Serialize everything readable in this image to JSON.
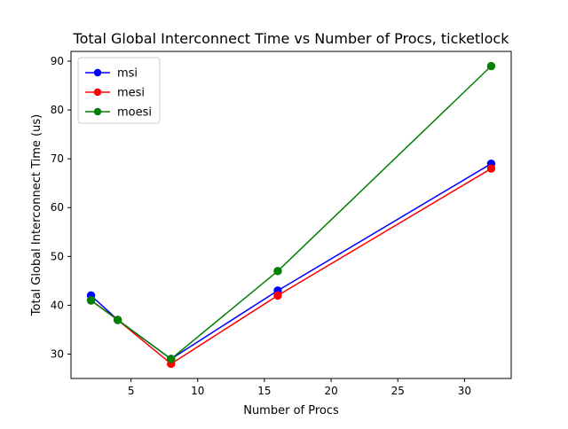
{
  "chart_data": {
    "type": "line",
    "title": "Total Global Interconnect Time vs Number of Procs, ticketlock",
    "xlabel": "Number of Procs",
    "ylabel": "Total Global Interconnect Time (us)",
    "x": [
      2,
      4,
      8,
      16,
      32
    ],
    "xlim": [
      0.5,
      33.5
    ],
    "ylim": [
      25,
      92
    ],
    "xticks": [
      5,
      10,
      15,
      20,
      25,
      30
    ],
    "yticks": [
      30,
      40,
      50,
      60,
      70,
      80,
      90
    ],
    "grid": false,
    "legend_position": "top-left",
    "series": [
      {
        "name": "msi",
        "color": "#0000ff",
        "values": [
          42,
          37,
          29,
          43,
          69
        ]
      },
      {
        "name": "mesi",
        "color": "#ff0000",
        "values": [
          41,
          37,
          28,
          42,
          68
        ]
      },
      {
        "name": "moesi",
        "color": "#008000",
        "values": [
          41,
          37,
          29,
          47,
          89
        ]
      }
    ]
  }
}
